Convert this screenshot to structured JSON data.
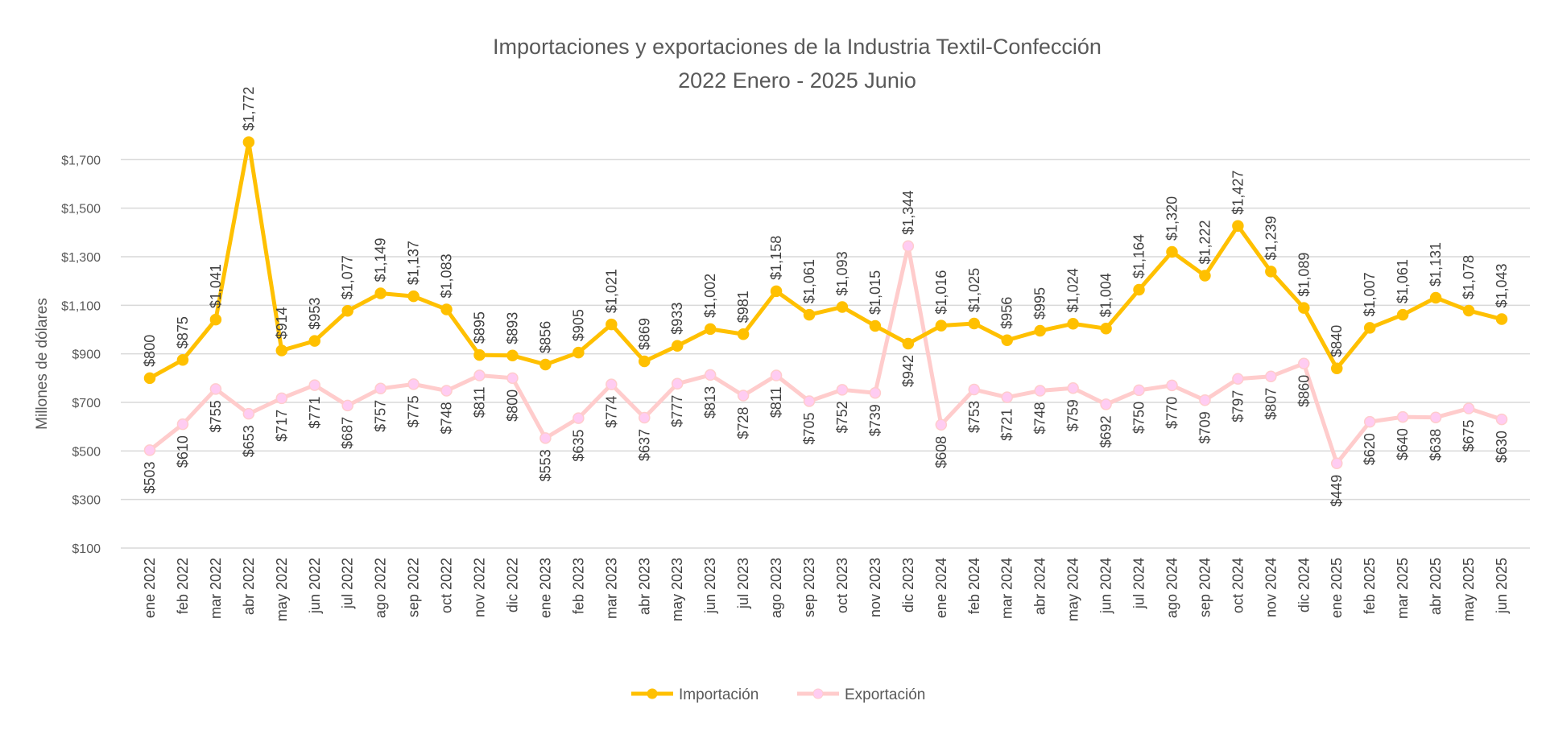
{
  "chart_data": {
    "type": "line",
    "title": "Importaciones y exportaciones de la Industria Textil-Confección",
    "subtitle": "2022 Enero - 2025 Junio",
    "xlabel": "",
    "ylabel": "Millones de dólares",
    "ylim": [
      100,
      1900
    ],
    "yticks": [
      100,
      300,
      500,
      700,
      900,
      1100,
      1300,
      1500,
      1700
    ],
    "ytick_labels": [
      "$100",
      "$300",
      "$500",
      "$700",
      "$900",
      "$1,100",
      "$1,300",
      "$1,500",
      "$1,700"
    ],
    "grid": true,
    "legend_position": "bottom",
    "categories": [
      "ene 2022",
      "feb 2022",
      "mar 2022",
      "abr 2022",
      "may 2022",
      "jun 2022",
      "jul 2022",
      "ago 2022",
      "sep 2022",
      "oct 2022",
      "nov 2022",
      "dic 2022",
      "ene 2023",
      "feb 2023",
      "mar 2023",
      "abr 2023",
      "may 2023",
      "jun 2023",
      "jul 2023",
      "ago 2023",
      "sep 2023",
      "oct 2023",
      "nov 2023",
      "dic 2023",
      "ene 2024",
      "feb 2024",
      "mar 2024",
      "abr 2024",
      "may 2024",
      "jun 2024",
      "jul 2024",
      "ago 2024",
      "sep 2024",
      "oct 2024",
      "nov 2024",
      "dic 2024",
      "ene 2025",
      "feb 2025",
      "mar 2025",
      "abr 2025",
      "may 2025",
      "jun 2025"
    ],
    "series": [
      {
        "name": "Importación",
        "color": "#FFC000",
        "marker_color": "#FFC000",
        "values": [
          800,
          875,
          1041,
          1772,
          914,
          953,
          1077,
          1149,
          1137,
          1083,
          895,
          893,
          856,
          905,
          1021,
          869,
          933,
          1002,
          981,
          1158,
          1061,
          1093,
          1015,
          942,
          1016,
          1025,
          956,
          995,
          1024,
          1004,
          1164,
          1320,
          1222,
          1427,
          1239,
          1089,
          840,
          1007,
          1061,
          1131,
          1078,
          1043
        ]
      },
      {
        "name": "Exportación",
        "color": "#FFCCCC",
        "marker_color": "#FFCCF2",
        "values": [
          503,
          610,
          755,
          653,
          717,
          771,
          687,
          757,
          775,
          748,
          811,
          800,
          553,
          635,
          774,
          637,
          777,
          813,
          728,
          811,
          705,
          752,
          739,
          1344,
          608,
          753,
          721,
          748,
          759,
          692,
          750,
          770,
          709,
          797,
          807,
          860,
          449,
          620,
          640,
          638,
          675,
          630
        ]
      }
    ]
  }
}
